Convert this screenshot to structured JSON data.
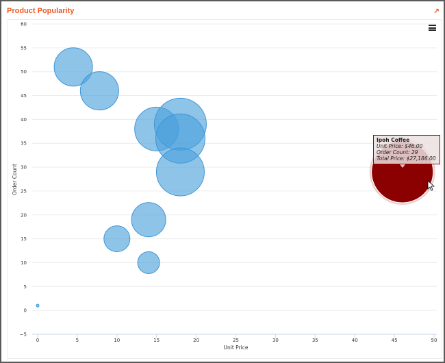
{
  "panel": {
    "title": "Product Popularity",
    "expand_icon": "↗",
    "menu_icon": "hamburger-menu-icon"
  },
  "colors": {
    "title": "#f15a24",
    "bubble": "#4a9fdc",
    "selected_bubble": "#8b0000",
    "grid": "#ececec"
  },
  "tooltip": {
    "name": "Ipoh Coffee",
    "unit_price": "Unit Price: $46.00",
    "order_count": "Order Count: 29",
    "total_price": "Total Price: $27,186.00"
  },
  "chart_data": {
    "type": "scatter",
    "subtype": "bubble",
    "title": "Product Popularity",
    "xlabel": "Unit Price",
    "ylabel": "Order Count",
    "xlim": [
      0,
      50
    ],
    "ylim": [
      -5,
      60
    ],
    "x_ticks": [
      0,
      5,
      10,
      15,
      20,
      25,
      30,
      35,
      40,
      45,
      50
    ],
    "y_ticks": [
      -5,
      0,
      5,
      10,
      15,
      20,
      25,
      30,
      35,
      40,
      45,
      50,
      55,
      60
    ],
    "grid": true,
    "legend": "none",
    "points": [
      {
        "x": 0,
        "y": 1,
        "r": 2
      },
      {
        "x": 4.5,
        "y": 51,
        "r": 28
      },
      {
        "x": 7.8,
        "y": 46,
        "r": 28
      },
      {
        "x": 15,
        "y": 38,
        "r": 32
      },
      {
        "x": 18,
        "y": 39,
        "r": 38
      },
      {
        "x": 18,
        "y": 36,
        "r": 36
      },
      {
        "x": 18,
        "y": 29,
        "r": 35
      },
      {
        "x": 14,
        "y": 19,
        "r": 25
      },
      {
        "x": 10,
        "y": 15,
        "r": 19
      },
      {
        "x": 14,
        "y": 10,
        "r": 16
      },
      {
        "x": 46,
        "y": 29,
        "r": 45,
        "name": "Ipoh Coffee",
        "total_price": 27186,
        "selected": true
      }
    ]
  }
}
